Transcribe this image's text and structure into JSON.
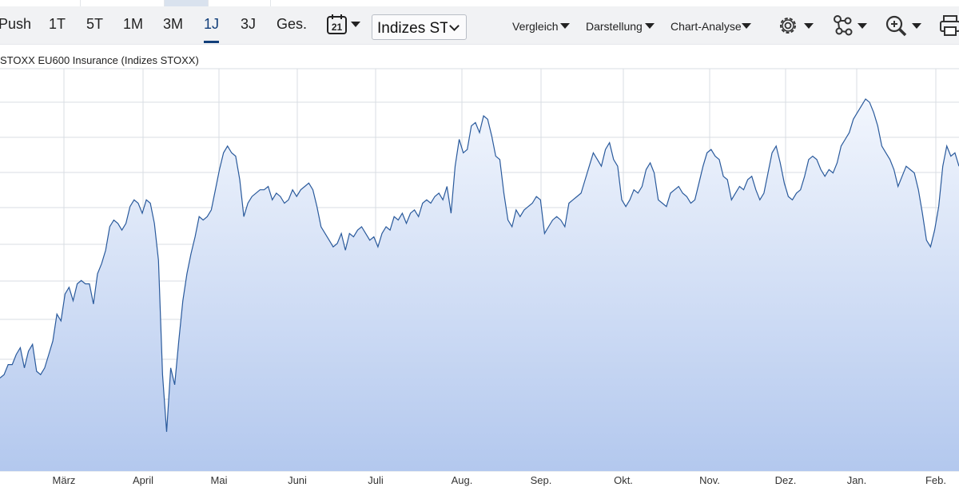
{
  "toolbar": {
    "periods": [
      {
        "label": "Push",
        "active": false
      },
      {
        "label": "1T",
        "active": false
      },
      {
        "label": "5T",
        "active": false
      },
      {
        "label": "1M",
        "active": false
      },
      {
        "label": "3M",
        "active": false
      },
      {
        "label": "1J",
        "active": true
      },
      {
        "label": "3J",
        "active": false
      },
      {
        "label": "Ges.",
        "active": false
      }
    ],
    "calendar_day": "21",
    "exchange_select": "Indizes STOXX",
    "vergleich": "Vergleich",
    "darstellung": "Darstellung",
    "chart_analyse": "Chart-Analyse",
    "icons": [
      "calendar-icon",
      "gear-icon",
      "network-icon",
      "zoom-in-icon",
      "print-icon"
    ]
  },
  "chart_data": {
    "type": "area",
    "title": "STOXX EU600 Insurance (Indizes STOXX)",
    "xlabel": "",
    "ylabel": "",
    "x_tick_labels": [
      "März",
      "April",
      "Mai",
      "Juni",
      "Juli",
      "Aug.",
      "Sep.",
      "Okt.",
      "Nov.",
      "Dez.",
      "Jan.",
      "Feb."
    ],
    "grid": true,
    "y_tick_labels_visible": false,
    "values_relative": [
      0.17,
      0.18,
      0.21,
      0.21,
      0.24,
      0.26,
      0.2,
      0.25,
      0.27,
      0.19,
      0.18,
      0.2,
      0.24,
      0.28,
      0.36,
      0.34,
      0.42,
      0.44,
      0.4,
      0.45,
      0.46,
      0.45,
      0.45,
      0.39,
      0.48,
      0.51,
      0.55,
      0.62,
      0.64,
      0.63,
      0.61,
      0.63,
      0.68,
      0.7,
      0.69,
      0.66,
      0.7,
      0.69,
      0.63,
      0.52,
      0.18,
      0.01,
      0.2,
      0.15,
      0.28,
      0.4,
      0.48,
      0.54,
      0.59,
      0.65,
      0.64,
      0.65,
      0.67,
      0.73,
      0.79,
      0.84,
      0.86,
      0.84,
      0.83,
      0.76,
      0.65,
      0.69,
      0.71,
      0.72,
      0.73,
      0.73,
      0.74,
      0.7,
      0.72,
      0.71,
      0.69,
      0.7,
      0.73,
      0.71,
      0.73,
      0.74,
      0.75,
      0.73,
      0.68,
      0.62,
      0.6,
      0.58,
      0.56,
      0.57,
      0.6,
      0.55,
      0.6,
      0.59,
      0.61,
      0.62,
      0.6,
      0.58,
      0.59,
      0.56,
      0.6,
      0.62,
      0.61,
      0.65,
      0.64,
      0.66,
      0.63,
      0.66,
      0.67,
      0.65,
      0.69,
      0.7,
      0.69,
      0.71,
      0.72,
      0.7,
      0.74,
      0.66,
      0.8,
      0.88,
      0.84,
      0.85,
      0.92,
      0.93,
      0.9,
      0.95,
      0.94,
      0.89,
      0.83,
      0.82,
      0.72,
      0.64,
      0.62,
      0.67,
      0.65,
      0.67,
      0.68,
      0.69,
      0.71,
      0.7,
      0.6,
      0.62,
      0.64,
      0.65,
      0.64,
      0.62,
      0.69,
      0.7,
      0.71,
      0.72,
      0.76,
      0.8,
      0.84,
      0.82,
      0.8,
      0.85,
      0.87,
      0.82,
      0.8,
      0.7,
      0.68,
      0.7,
      0.73,
      0.72,
      0.74,
      0.79,
      0.81,
      0.78,
      0.7,
      0.69,
      0.68,
      0.72,
      0.73,
      0.74,
      0.72,
      0.71,
      0.69,
      0.7,
      0.75,
      0.8,
      0.84,
      0.85,
      0.83,
      0.82,
      0.77,
      0.76,
      0.7,
      0.72,
      0.74,
      0.73,
      0.76,
      0.77,
      0.73,
      0.7,
      0.72,
      0.78,
      0.84,
      0.86,
      0.81,
      0.75,
      0.71,
      0.7,
      0.72,
      0.73,
      0.77,
      0.82,
      0.83,
      0.82,
      0.79,
      0.77,
      0.79,
      0.78,
      0.81,
      0.86,
      0.88,
      0.9,
      0.94,
      0.96,
      0.98,
      1.0,
      0.99,
      0.96,
      0.92,
      0.86,
      0.84,
      0.82,
      0.79,
      0.74,
      0.77,
      0.8,
      0.79,
      0.78,
      0.73,
      0.66,
      0.58,
      0.56,
      0.61,
      0.68,
      0.8,
      0.86,
      0.83,
      0.84,
      0.8
    ]
  }
}
